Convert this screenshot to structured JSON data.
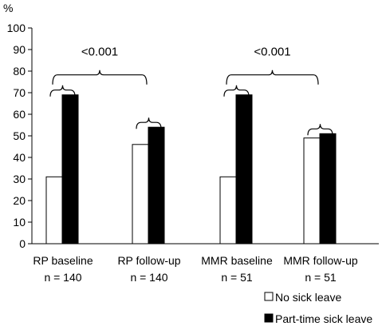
{
  "chart_data": {
    "type": "bar",
    "y_unit_label": "%",
    "ylim": [
      0,
      100
    ],
    "y_ticks": [
      0,
      10,
      20,
      30,
      40,
      50,
      60,
      70,
      80,
      90,
      100
    ],
    "categories": [
      {
        "line1": "RP baseline",
        "line2": "n = 140"
      },
      {
        "line1": "RP follow-up",
        "line2": "n = 140"
      },
      {
        "line1": "MMR baseline",
        "line2": "n = 51"
      },
      {
        "line1": "MMR follow-up",
        "line2": "n = 51"
      }
    ],
    "series": [
      {
        "name": "No sick leave",
        "color": "#ffffff",
        "values": [
          31,
          46,
          31,
          49
        ]
      },
      {
        "name": "Part-time sick leave",
        "color": "#000000",
        "values": [
          69,
          54,
          69,
          51
        ]
      }
    ],
    "annotations": [
      {
        "text": "<0.001",
        "from_category": 0,
        "to_category": 1
      },
      {
        "text": "<0.001",
        "from_category": 2,
        "to_category": 3
      }
    ],
    "grid": false,
    "legend_position": "bottom-right"
  }
}
